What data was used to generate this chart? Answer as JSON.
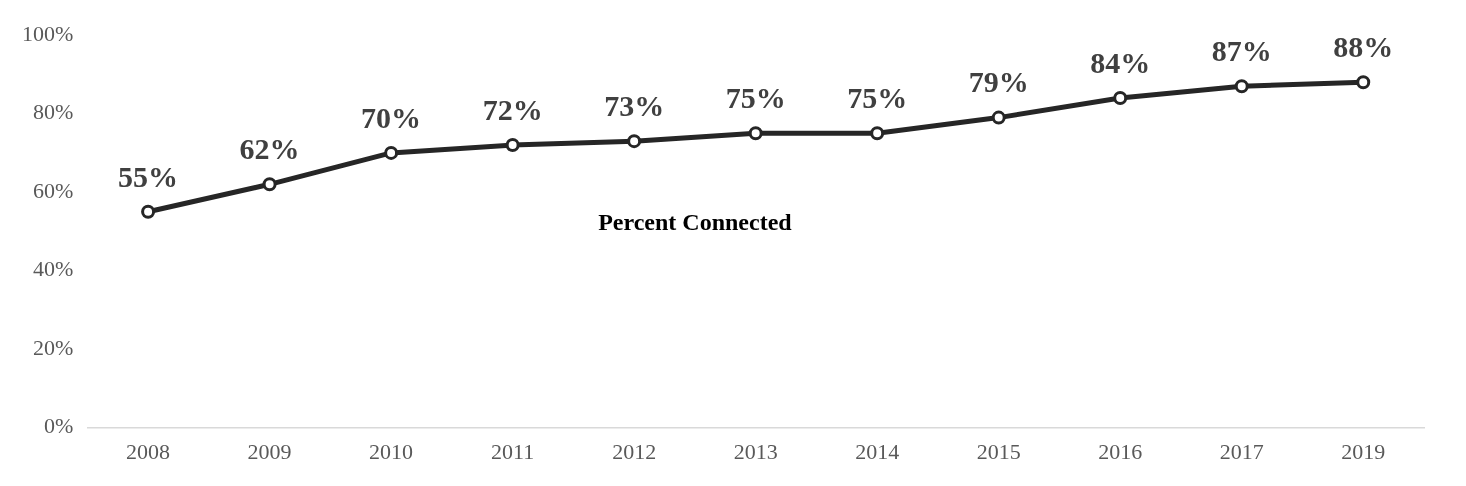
{
  "chart_data": {
    "type": "line",
    "categories": [
      "2008",
      "2009",
      "2010",
      "2011",
      "2012",
      "2013",
      "2014",
      "2015",
      "2016",
      "2017",
      "2019"
    ],
    "series": [
      {
        "name": "Percent Connected",
        "color": "#262626",
        "values": [
          55,
          62,
          70,
          72,
          73,
          75,
          75,
          79,
          84,
          87,
          88
        ]
      }
    ],
    "value_labels": [
      "55%",
      "62%",
      "70%",
      "72%",
      "73%",
      "75%",
      "75%",
      "79%",
      "84%",
      "87%",
      "88%"
    ],
    "ylim": [
      0,
      100
    ],
    "yticks": [
      {
        "value": 0,
        "label": "0%"
      },
      {
        "value": 20,
        "label": "20%"
      },
      {
        "value": 40,
        "label": "40%"
      },
      {
        "value": 60,
        "label": "60%"
      },
      {
        "value": 80,
        "label": "80%"
      },
      {
        "value": 100,
        "label": "100%"
      }
    ],
    "grid": false,
    "legend": false,
    "marker": "circle",
    "line_style": "solid"
  }
}
